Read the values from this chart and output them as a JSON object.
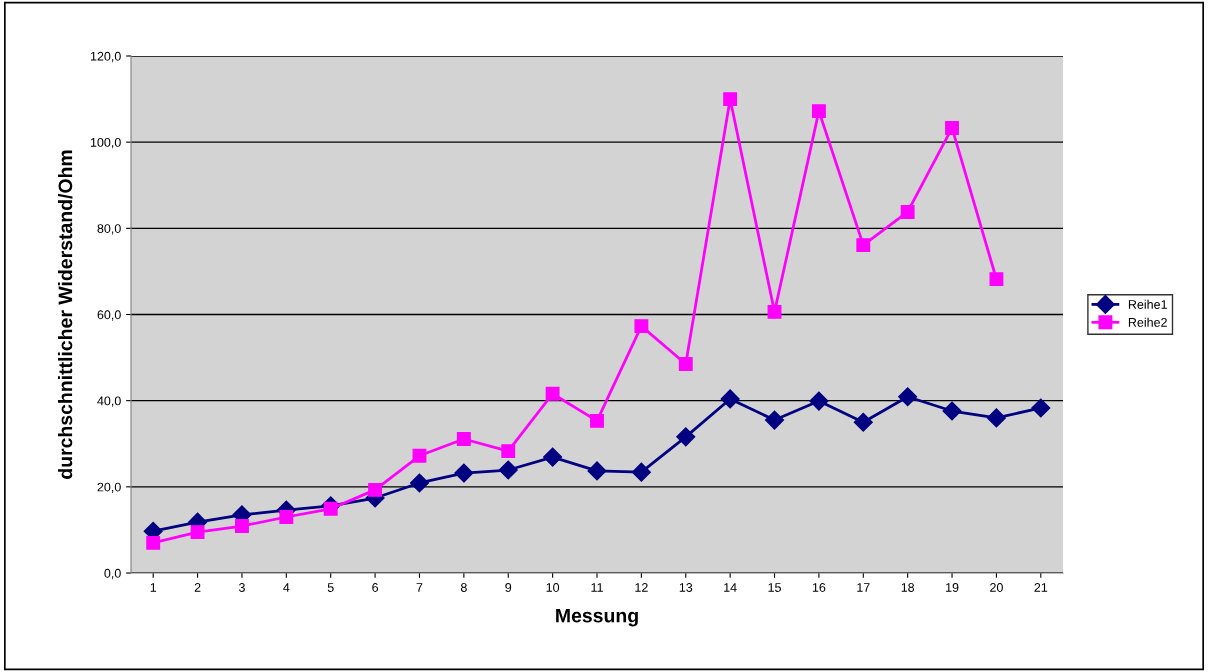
{
  "chart_data": {
    "type": "line",
    "xlabel": "Messung",
    "ylabel": "durchschnittlicher Widerstand/Ohm",
    "categories": [
      "1",
      "2",
      "3",
      "4",
      "5",
      "6",
      "7",
      "8",
      "9",
      "10",
      "11",
      "12",
      "13",
      "14",
      "15",
      "16",
      "17",
      "18",
      "19",
      "20",
      "21"
    ],
    "series": [
      {
        "name": "Reihe1",
        "color": "#000080",
        "marker": "diamond",
        "values": [
          9.7,
          11.8,
          13.5,
          14.6,
          15.6,
          17.4,
          20.9,
          23.2,
          23.9,
          26.9,
          23.7,
          23.4,
          31.6,
          40.4,
          35.5,
          39.9,
          35.0,
          40.9,
          37.6,
          36.0,
          38.3
        ]
      },
      {
        "name": "Reihe2",
        "color": "#ff00ff",
        "marker": "square",
        "values": [
          7.0,
          9.5,
          10.9,
          13.0,
          14.9,
          19.3,
          27.2,
          31.1,
          28.3,
          41.6,
          35.3,
          57.3,
          48.5,
          110.0,
          60.6,
          107.2,
          76.1,
          83.8,
          103.3,
          68.2,
          null
        ]
      }
    ],
    "ylim": [
      0,
      120
    ],
    "yticks": [
      {
        "value": 0,
        "label": "0,0"
      },
      {
        "value": 20,
        "label": "20,0"
      },
      {
        "value": 40,
        "label": "40,0"
      },
      {
        "value": 60,
        "label": "60,0"
      },
      {
        "value": 80,
        "label": "80,0"
      },
      {
        "value": 100,
        "label": "100,0"
      },
      {
        "value": 120,
        "label": "120,0"
      }
    ],
    "grid": "y",
    "legend": "right"
  }
}
